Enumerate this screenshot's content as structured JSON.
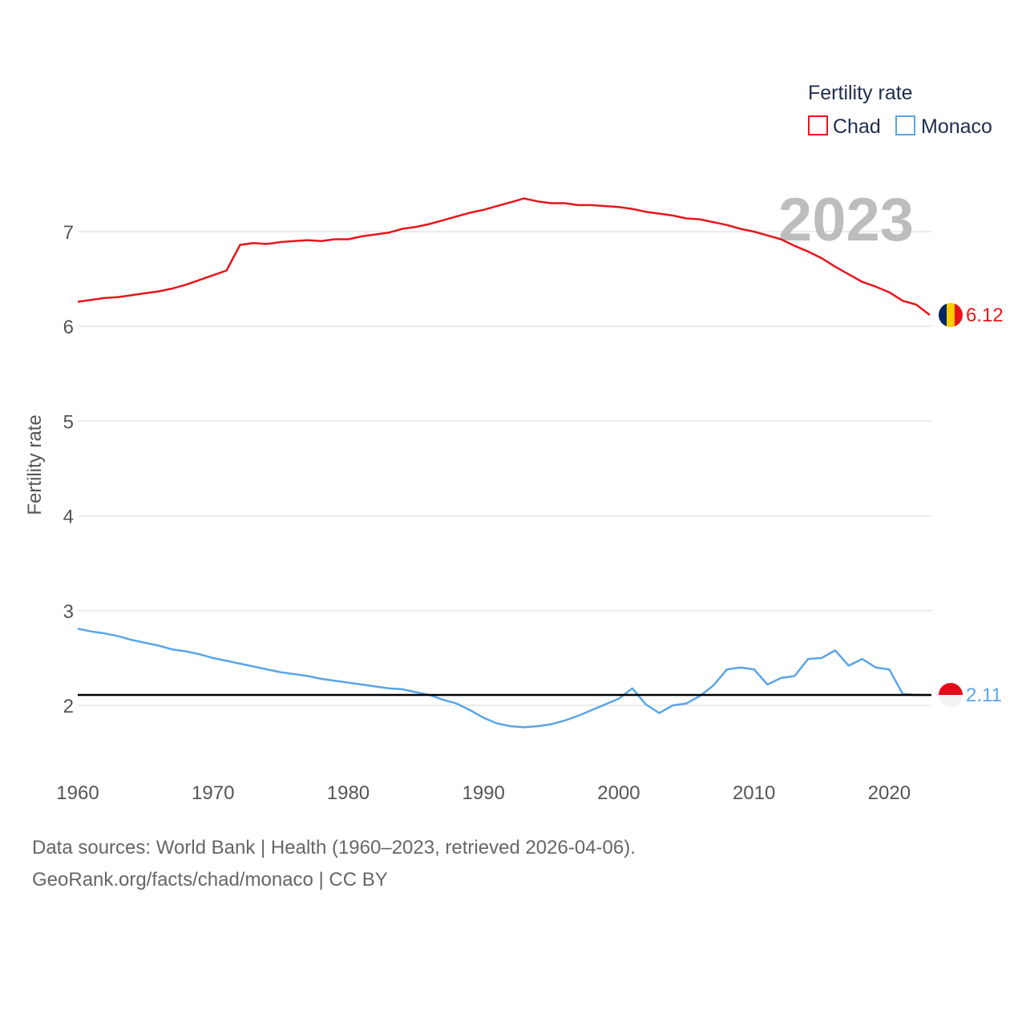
{
  "chart_data": {
    "type": "line",
    "ylabel": "Fertility rate",
    "ylim": [
      1.4,
      7.7
    ],
    "yticks": [
      2,
      3,
      4,
      5,
      6,
      7
    ],
    "xlim": [
      1960,
      2023
    ],
    "xticks": [
      1960,
      1970,
      1980,
      1990,
      2000,
      2010,
      2020
    ],
    "current_year": "2023",
    "reference_line": 2.11,
    "legend": {
      "title": "Fertility rate",
      "position": "top-right"
    },
    "x": [
      1960,
      1961,
      1962,
      1963,
      1964,
      1965,
      1966,
      1967,
      1968,
      1969,
      1970,
      1971,
      1972,
      1973,
      1974,
      1975,
      1976,
      1977,
      1978,
      1979,
      1980,
      1981,
      1982,
      1983,
      1984,
      1985,
      1986,
      1987,
      1988,
      1989,
      1990,
      1991,
      1992,
      1993,
      1994,
      1995,
      1996,
      1997,
      1998,
      1999,
      2000,
      2001,
      2002,
      2003,
      2004,
      2005,
      2006,
      2007,
      2008,
      2009,
      2010,
      2011,
      2012,
      2013,
      2014,
      2015,
      2016,
      2017,
      2018,
      2019,
      2020,
      2021,
      2022,
      2023
    ],
    "series": [
      {
        "name": "Chad",
        "color": "#e8141c",
        "end_label": "6.12",
        "values": [
          6.26,
          6.28,
          6.3,
          6.31,
          6.33,
          6.35,
          6.37,
          6.4,
          6.44,
          6.49,
          6.54,
          6.59,
          6.86,
          6.88,
          6.87,
          6.89,
          6.9,
          6.91,
          6.9,
          6.92,
          6.92,
          6.95,
          6.97,
          6.99,
          7.03,
          7.05,
          7.08,
          7.12,
          7.16,
          7.2,
          7.23,
          7.27,
          7.31,
          7.35,
          7.32,
          7.3,
          7.3,
          7.28,
          7.28,
          7.27,
          7.26,
          7.24,
          7.21,
          7.19,
          7.17,
          7.14,
          7.13,
          7.1,
          7.07,
          7.03,
          7.0,
          6.96,
          6.92,
          6.85,
          6.79,
          6.72,
          6.63,
          6.55,
          6.47,
          6.42,
          6.36,
          6.27,
          6.23,
          6.12
        ]
      },
      {
        "name": "Monaco",
        "color": "#5aa5e6",
        "end_label": "2.11",
        "values": [
          2.81,
          2.78,
          2.76,
          2.73,
          2.69,
          2.66,
          2.63,
          2.59,
          2.57,
          2.54,
          2.5,
          2.47,
          2.44,
          2.41,
          2.38,
          2.35,
          2.33,
          2.31,
          2.28,
          2.26,
          2.24,
          2.22,
          2.2,
          2.18,
          2.17,
          2.14,
          2.11,
          2.06,
          2.02,
          1.95,
          1.87,
          1.81,
          1.78,
          1.77,
          1.78,
          1.8,
          1.84,
          1.89,
          1.95,
          2.01,
          2.07,
          2.18,
          2.01,
          1.92,
          2.0,
          2.02,
          2.1,
          2.21,
          2.38,
          2.4,
          2.38,
          2.22,
          2.29,
          2.31,
          2.49,
          2.5,
          2.58,
          2.42,
          2.49,
          2.4,
          2.38,
          2.12,
          2.11,
          2.11
        ]
      }
    ]
  },
  "footer": {
    "line1": "Data sources: World Bank | Health (1960–2023, retrieved 2026-04-06).",
    "line2": "GeoRank.org/facts/chad/monaco | CC BY"
  }
}
